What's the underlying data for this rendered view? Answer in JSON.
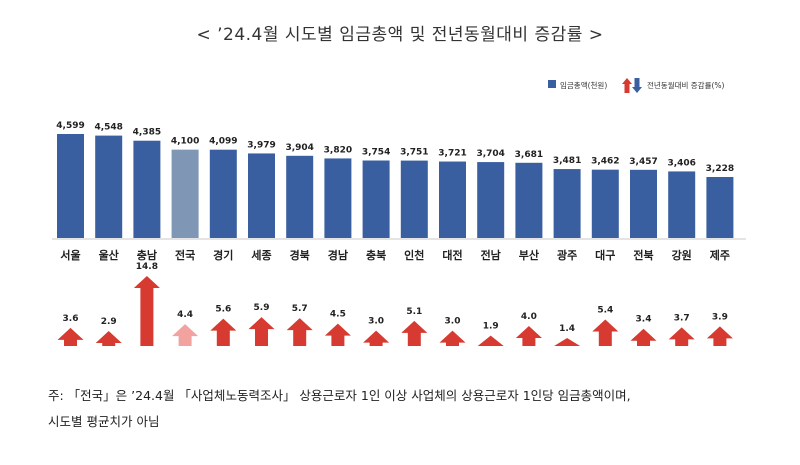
{
  "title": "< ’24.4월 시도별 임금총액 및 전년동월대비 증감률 >",
  "chart_data": {
    "type": "bar",
    "categories": [
      "서울",
      "울산",
      "충남",
      "전국",
      "경기",
      "세종",
      "경북",
      "경남",
      "충북",
      "인천",
      "대전",
      "전남",
      "부산",
      "광주",
      "대구",
      "전북",
      "강원",
      "제주"
    ],
    "series": [
      {
        "name": "임금총액(천원)",
        "values": [
          4599,
          4548,
          4385,
          4100,
          4099,
          3979,
          3904,
          3820,
          3754,
          3751,
          3721,
          3704,
          3681,
          3481,
          3462,
          3457,
          3406,
          3228
        ]
      },
      {
        "name": "전년동월대비 증감률(%)",
        "values": [
          3.6,
          2.9,
          14.8,
          4.4,
          5.6,
          5.9,
          5.7,
          4.5,
          3.0,
          5.1,
          3.0,
          1.9,
          4.0,
          1.4,
          5.4,
          3.4,
          3.7,
          3.9
        ]
      }
    ],
    "wage_labels": [
      "4,599",
      "4,548",
      "4,385",
      "4,100",
      "4,099",
      "3,979",
      "3,904",
      "3,820",
      "3,754",
      "3,751",
      "3,721",
      "3,704",
      "3,681",
      "3,481",
      "3,462",
      "3,457",
      "3,406",
      "3,228"
    ],
    "rate_labels": [
      "3.6",
      "2.9",
      "14.8",
      "4.4",
      "5.6",
      "5.9",
      "5.7",
      "4.5",
      "3.0",
      "5.1",
      "3.0",
      "1.9",
      "4.0",
      "1.4",
      "5.4",
      "3.4",
      "3.7",
      "3.9"
    ],
    "highlight_category": "전국",
    "colors": {
      "bar": "#3a5fa0",
      "bar_highlight": "#7f96b4",
      "arrow": "#d63a30",
      "arrow_highlight": "#f2a3a0"
    }
  },
  "note": {
    "line1": "주: 「전국」은 ’24.4월 「사업체노동력조사」 상용근로자 1인 이상 사업체의 상용근로자 1인당 임금총액이며,",
    "line2": "시도별 평균치가 아님"
  }
}
